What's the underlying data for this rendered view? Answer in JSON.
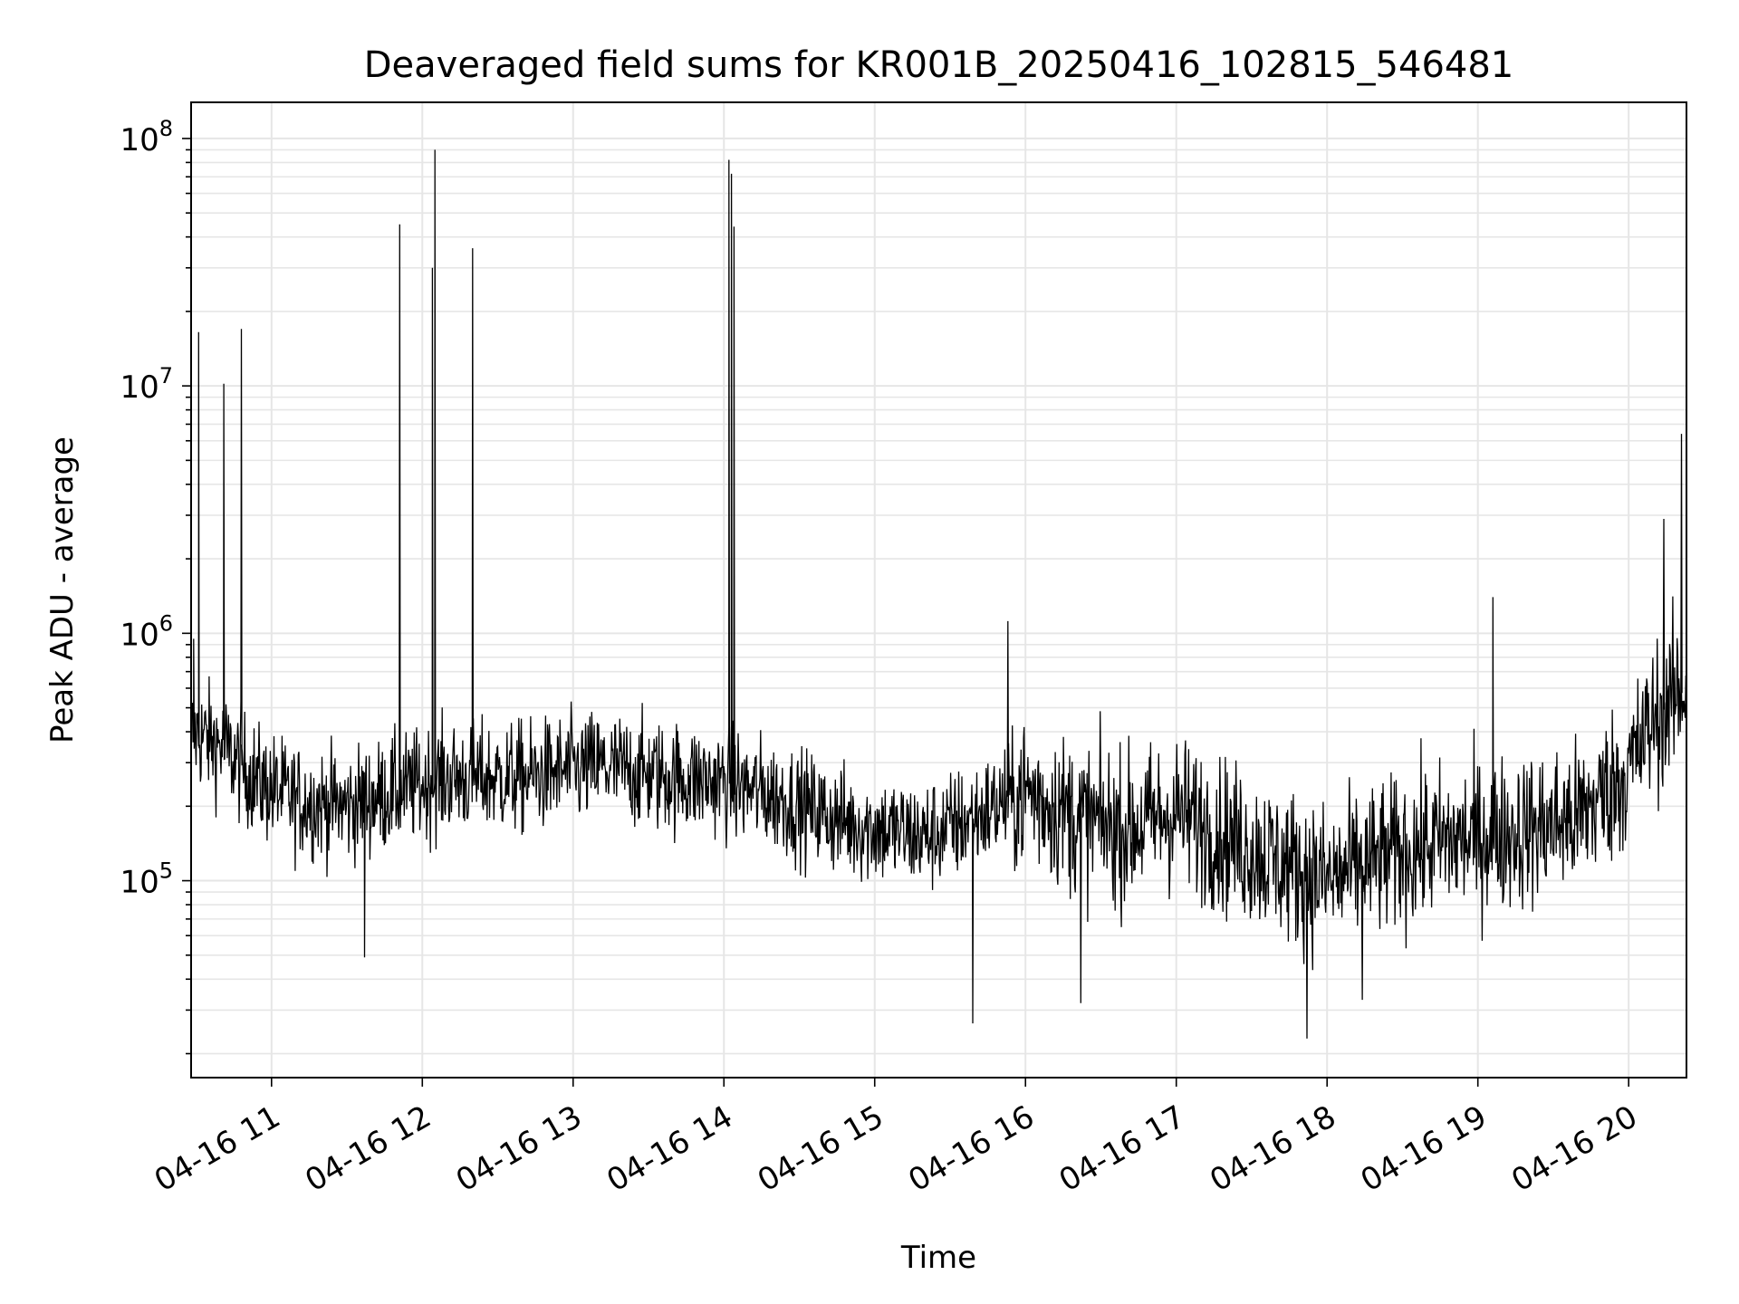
{
  "chart_data": {
    "type": "line",
    "title": "Deaveraged field sums for KR001B_20250416_102815_546481",
    "xlabel": "Time",
    "ylabel": "Peak ADU - average",
    "x_start": "04-16 10:28",
    "x_end": "04-16 20:23",
    "xlim": [
      "04-16 10:28",
      "04-16 20:23"
    ],
    "x_ticks": [
      "04-16 11",
      "04-16 12",
      "04-16 13",
      "04-16 14",
      "04-16 15",
      "04-16 16",
      "04-16 17",
      "04-16 18",
      "04-16 19",
      "04-16 20"
    ],
    "y_scale": "log",
    "ylim": [
      16000,
      140000000
    ],
    "y_ticks": [
      {
        "value": 100000,
        "base": "10",
        "exp": "5"
      },
      {
        "value": 1000000,
        "base": "10",
        "exp": "6"
      },
      {
        "value": 10000000,
        "base": "10",
        "exp": "7"
      },
      {
        "value": 100000000,
        "base": "10",
        "exp": "8"
      }
    ],
    "grid": true,
    "line_color": "#000000",
    "grid_color": "#e6e6e6",
    "baseline": [
      {
        "t": "04-16 10:28",
        "y": 400000
      },
      {
        "t": "04-16 10:40",
        "y": 350000
      },
      {
        "t": "04-16 10:55",
        "y": 250000
      },
      {
        "t": "04-16 11:10",
        "y": 210000
      },
      {
        "t": "04-16 11:30",
        "y": 200000
      },
      {
        "t": "04-16 11:50",
        "y": 230000
      },
      {
        "t": "04-16 12:10",
        "y": 260000
      },
      {
        "t": "04-16 12:40",
        "y": 260000
      },
      {
        "t": "04-16 13:10",
        "y": 290000
      },
      {
        "t": "04-16 13:40",
        "y": 260000
      },
      {
        "t": "04-16 14:00",
        "y": 250000
      },
      {
        "t": "04-16 14:20",
        "y": 220000
      },
      {
        "t": "04-16 14:50",
        "y": 170000
      },
      {
        "t": "04-16 15:20",
        "y": 150000
      },
      {
        "t": "04-16 15:40",
        "y": 180000
      },
      {
        "t": "04-16 16:00",
        "y": 230000
      },
      {
        "t": "04-16 16:20",
        "y": 180000
      },
      {
        "t": "04-16 16:40",
        "y": 160000
      },
      {
        "t": "04-16 17:00",
        "y": 190000
      },
      {
        "t": "04-16 17:20",
        "y": 150000
      },
      {
        "t": "04-16 17:40",
        "y": 120000
      },
      {
        "t": "04-16 18:00",
        "y": 100000
      },
      {
        "t": "04-16 18:20",
        "y": 120000
      },
      {
        "t": "04-16 18:40",
        "y": 140000
      },
      {
        "t": "04-16 19:00",
        "y": 150000
      },
      {
        "t": "04-16 19:20",
        "y": 160000
      },
      {
        "t": "04-16 19:40",
        "y": 180000
      },
      {
        "t": "04-16 20:00",
        "y": 280000
      },
      {
        "t": "04-16 20:10",
        "y": 450000
      },
      {
        "t": "04-16 20:23",
        "y": 600000
      }
    ],
    "spikes": [
      {
        "t": "04-16 10:29",
        "y": 950000
      },
      {
        "t": "04-16 10:31",
        "y": 16500000
      },
      {
        "t": "04-16 10:41",
        "y": 10200000
      },
      {
        "t": "04-16 10:48",
        "y": 17000000
      },
      {
        "t": "04-16 11:51",
        "y": 45000000
      },
      {
        "t": "04-16 12:04",
        "y": 30000000
      },
      {
        "t": "04-16 12:05",
        "y": 90000000
      },
      {
        "t": "04-16 12:20",
        "y": 36000000
      },
      {
        "t": "04-16 14:02",
        "y": 82000000
      },
      {
        "t": "04-16 14:03",
        "y": 72000000
      },
      {
        "t": "04-16 14:04",
        "y": 44000000
      },
      {
        "t": "04-16 15:53",
        "y": 1120000
      },
      {
        "t": "04-16 19:06",
        "y": 1400000
      },
      {
        "t": "04-16 20:14",
        "y": 2900000
      },
      {
        "t": "04-16 20:21",
        "y": 6400000
      }
    ],
    "dips": [
      {
        "t": "04-16 11:37",
        "y": 49000
      },
      {
        "t": "04-16 15:39",
        "y": 26500
      },
      {
        "t": "04-16 16:22",
        "y": 32000
      },
      {
        "t": "04-16 17:52",
        "y": 23000
      },
      {
        "t": "04-16 18:14",
        "y": 33000
      }
    ]
  }
}
